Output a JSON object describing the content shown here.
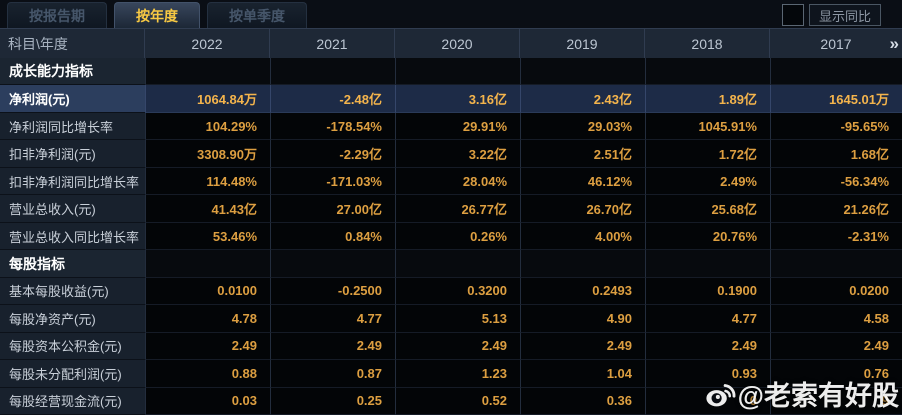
{
  "tabs": [
    {
      "label": "按报告期",
      "active": false
    },
    {
      "label": "按年度",
      "active": true
    },
    {
      "label": "按单季度",
      "active": false
    }
  ],
  "toolbar": {
    "show_yoy_label": "显示同比",
    "checkbox_checked": false
  },
  "table": {
    "corner_header": "科目\\年度",
    "years": [
      "2022",
      "2021",
      "2020",
      "2019",
      "2018",
      "2017"
    ],
    "more_icon": "»",
    "rows": [
      {
        "type": "section",
        "label": "成长能力指标",
        "values": [
          "",
          "",
          "",
          "",
          "",
          ""
        ]
      },
      {
        "type": "data",
        "highlight": true,
        "label": "净利润(元)",
        "values": [
          "1064.84万",
          "-2.48亿",
          "3.16亿",
          "2.43亿",
          "1.89亿",
          "1645.01万"
        ]
      },
      {
        "type": "data",
        "label": "净利润同比增长率",
        "values": [
          "104.29%",
          "-178.54%",
          "29.91%",
          "29.03%",
          "1045.91%",
          "-95.65%"
        ]
      },
      {
        "type": "data",
        "label": "扣非净利润(元)",
        "values": [
          "3308.90万",
          "-2.29亿",
          "3.22亿",
          "2.51亿",
          "1.72亿",
          "1.68亿"
        ]
      },
      {
        "type": "data",
        "label": "扣非净利润同比增长率",
        "values": [
          "114.48%",
          "-171.03%",
          "28.04%",
          "46.12%",
          "2.49%",
          "-56.34%"
        ]
      },
      {
        "type": "data",
        "label": "营业总收入(元)",
        "values": [
          "41.43亿",
          "27.00亿",
          "26.77亿",
          "26.70亿",
          "25.68亿",
          "21.26亿"
        ]
      },
      {
        "type": "data",
        "label": "营业总收入同比增长率",
        "values": [
          "53.46%",
          "0.84%",
          "0.26%",
          "4.00%",
          "20.76%",
          "-2.31%"
        ]
      },
      {
        "type": "section",
        "label": "每股指标",
        "values": [
          "",
          "",
          "",
          "",
          "",
          ""
        ]
      },
      {
        "type": "data",
        "label": "基本每股收益(元)",
        "values": [
          "0.0100",
          "-0.2500",
          "0.3200",
          "0.2493",
          "0.1900",
          "0.0200"
        ]
      },
      {
        "type": "data",
        "label": "每股净资产(元)",
        "values": [
          "4.78",
          "4.77",
          "5.13",
          "4.90",
          "4.77",
          "4.58"
        ]
      },
      {
        "type": "data",
        "label": "每股资本公积金(元)",
        "values": [
          "2.49",
          "2.49",
          "2.49",
          "2.49",
          "2.49",
          "2.49"
        ]
      },
      {
        "type": "data",
        "label": "每股未分配利润(元)",
        "values": [
          "0.88",
          "0.87",
          "1.23",
          "1.04",
          "0.93",
          "0.76"
        ]
      },
      {
        "type": "data",
        "label": "每股经营现金流(元)",
        "values": [
          "0.03",
          "0.25",
          "0.52",
          "0.36",
          "0",
          "9"
        ]
      }
    ]
  },
  "watermark": {
    "handle": "@老索有好股",
    "icon": "weibo-icon"
  },
  "colors": {
    "accent_gold": "#f8c943",
    "value_orange": "#dd9f41",
    "highlight_value_orange": "#f4b44c",
    "highlight_row_bg": "#1d2b47",
    "highlight_label_bg": "#2c3e5e",
    "header_bg": "#1e2836",
    "label_bg": "#18212d",
    "value_bg": "#030507"
  }
}
